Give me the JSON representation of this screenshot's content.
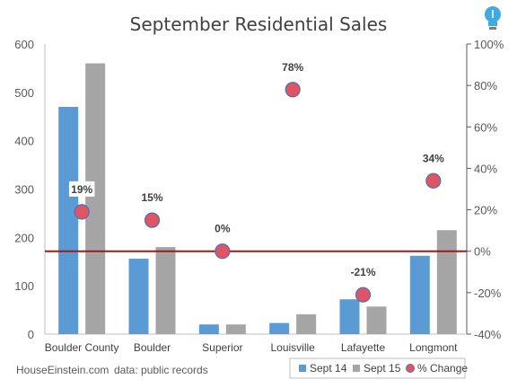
{
  "chart_data": {
    "type": "bar",
    "title": "September Residential Sales",
    "categories": [
      "Boulder County",
      "Boulder",
      "Superior",
      "Louisville",
      "Lafayette",
      "Longmont"
    ],
    "series": [
      {
        "name": "Sept 14",
        "values": [
          470,
          156,
          20,
          23,
          72,
          162
        ],
        "color": "#5b9bd5"
      },
      {
        "name": "Sept 15",
        "values": [
          560,
          180,
          20,
          41,
          57,
          215
        ],
        "color": "#a5a5a5"
      }
    ],
    "pct_series": {
      "name": "% Change",
      "values": [
        19,
        15,
        0,
        78,
        -21,
        34
      ],
      "labels": [
        "19%",
        "15%",
        "0%",
        "78%",
        "-21%",
        "34%"
      ],
      "color": "#e05564"
    },
    "y_left": {
      "ylim": [
        0,
        600
      ],
      "ticks": [
        "0",
        "100",
        "200",
        "300",
        "400",
        "500",
        "600"
      ]
    },
    "y_right": {
      "ylim": [
        -40,
        100
      ],
      "ticks": [
        "-40%",
        "-20%",
        "0%",
        "20%",
        "40%",
        "60%",
        "80%",
        "100%"
      ]
    },
    "zero_line_color": "#9c1b1b",
    "legend_position": "bottom-right",
    "grid": false
  },
  "footer": {
    "source_site": "HouseEinstein.com",
    "source_note": "data: public records"
  }
}
